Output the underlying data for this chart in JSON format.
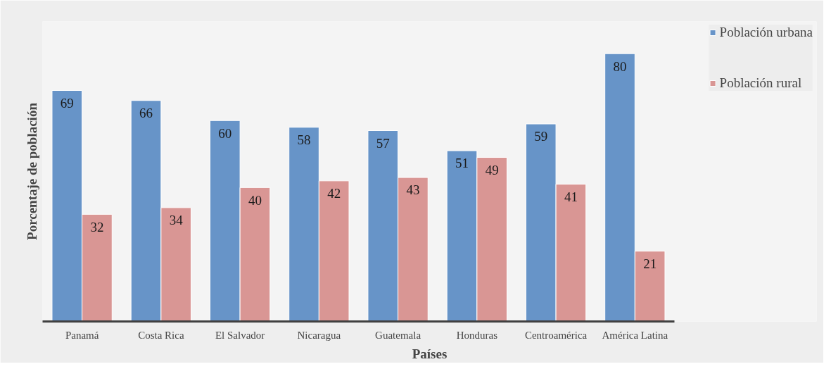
{
  "chart_data": {
    "type": "bar",
    "xlabel": "Países",
    "ylabel": "Porcentaje de población",
    "categories": [
      "Panamá",
      "Costa Rica",
      "El Salvador",
      "Nicaragua",
      "Guatemala",
      "Honduras",
      "Centroamérica",
      "América Latina"
    ],
    "series": [
      {
        "name": "Población urbana",
        "color": "#6794c8",
        "values": [
          69,
          66,
          60,
          58,
          57,
          51,
          59,
          80
        ]
      },
      {
        "name": "Población rural",
        "color": "#d99694",
        "values": [
          32,
          34,
          40,
          42,
          43,
          49,
          41,
          21
        ]
      }
    ],
    "data_labels": true,
    "legend": "right",
    "grid": false
  }
}
